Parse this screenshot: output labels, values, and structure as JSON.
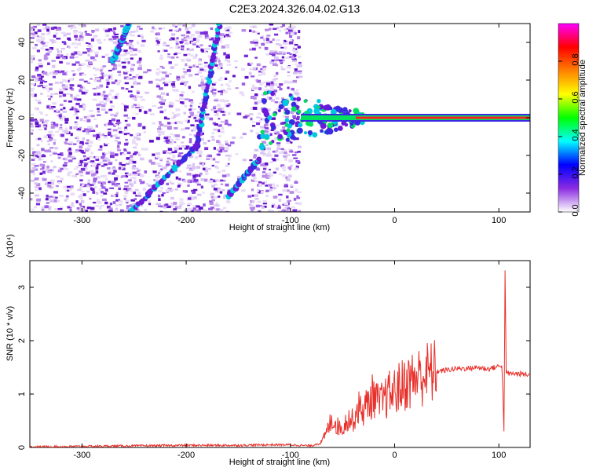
{
  "title": "C2E3.2024.326.04.02.G13",
  "chart_data": [
    {
      "type": "heatmap",
      "xlabel": "Height of straight line (km)",
      "ylabel": "Frequency (Hz)",
      "xlim": [
        -350,
        130
      ],
      "ylim": [
        -50,
        50
      ],
      "x_ticks": [
        -300,
        -200,
        -100,
        0,
        100
      ],
      "y_ticks": [
        -40,
        -20,
        0,
        20,
        40
      ],
      "colorbar": {
        "label": "Normalized spectral amplitude",
        "range": [
          0,
          1
        ],
        "ticks": [
          0.0,
          0.2,
          0.4,
          0.6,
          0.8
        ],
        "colormap": [
          "#ffffff",
          "#8a2be2",
          "#0000ff",
          "#00ffff",
          "#00ff00",
          "#ffff00",
          "#ff8000",
          "#ff0000",
          "#ff00ff"
        ]
      },
      "features": [
        {
          "name": "carrier_line",
          "x": [
            -90,
            130
          ],
          "y": 0,
          "amplitude": 1.0
        },
        {
          "name": "streak",
          "x": [
            -253,
            -190,
            -168
          ],
          "y": [
            -50,
            -15,
            50
          ]
        },
        {
          "name": "streak",
          "x": [
            -270,
            -255
          ],
          "y": [
            30,
            50
          ]
        },
        {
          "name": "streak",
          "x": [
            -160,
            -130
          ],
          "y": [
            -42,
            -22
          ]
        }
      ]
    },
    {
      "type": "line",
      "xlabel": "Height of straight line (km)",
      "ylabel": "SNR (10 * v/v)",
      "y_multiplier": "(x10⁴)",
      "xlim": [
        -350,
        130
      ],
      "ylim": [
        0,
        3.5
      ],
      "x_ticks": [
        -300,
        -200,
        -100,
        0,
        100
      ],
      "y_ticks": [
        0,
        1,
        2,
        3
      ],
      "color": "#e8302a",
      "x": [
        -350,
        -300,
        -250,
        -200,
        -150,
        -120,
        -100,
        -80,
        -70,
        -65,
        -60,
        -55,
        -50,
        -45,
        -40,
        -35,
        -30,
        -25,
        -20,
        -15,
        -10,
        -5,
        0,
        10,
        20,
        30,
        40,
        50,
        60,
        70,
        80,
        90,
        100,
        103,
        105,
        106,
        107,
        108,
        110,
        120,
        130
      ],
      "y": [
        0.01,
        0.02,
        0.03,
        0.04,
        0.04,
        0.05,
        0.05,
        0.03,
        0.1,
        0.3,
        0.55,
        0.4,
        0.35,
        0.55,
        0.5,
        0.75,
        0.7,
        0.85,
        1.0,
        0.8,
        0.9,
        1.0,
        1.05,
        1.2,
        1.3,
        1.38,
        1.42,
        1.45,
        1.48,
        1.48,
        1.5,
        1.47,
        1.52,
        1.55,
        0.3,
        3.3,
        1.4,
        1.4,
        1.38,
        1.38,
        1.36
      ]
    }
  ]
}
